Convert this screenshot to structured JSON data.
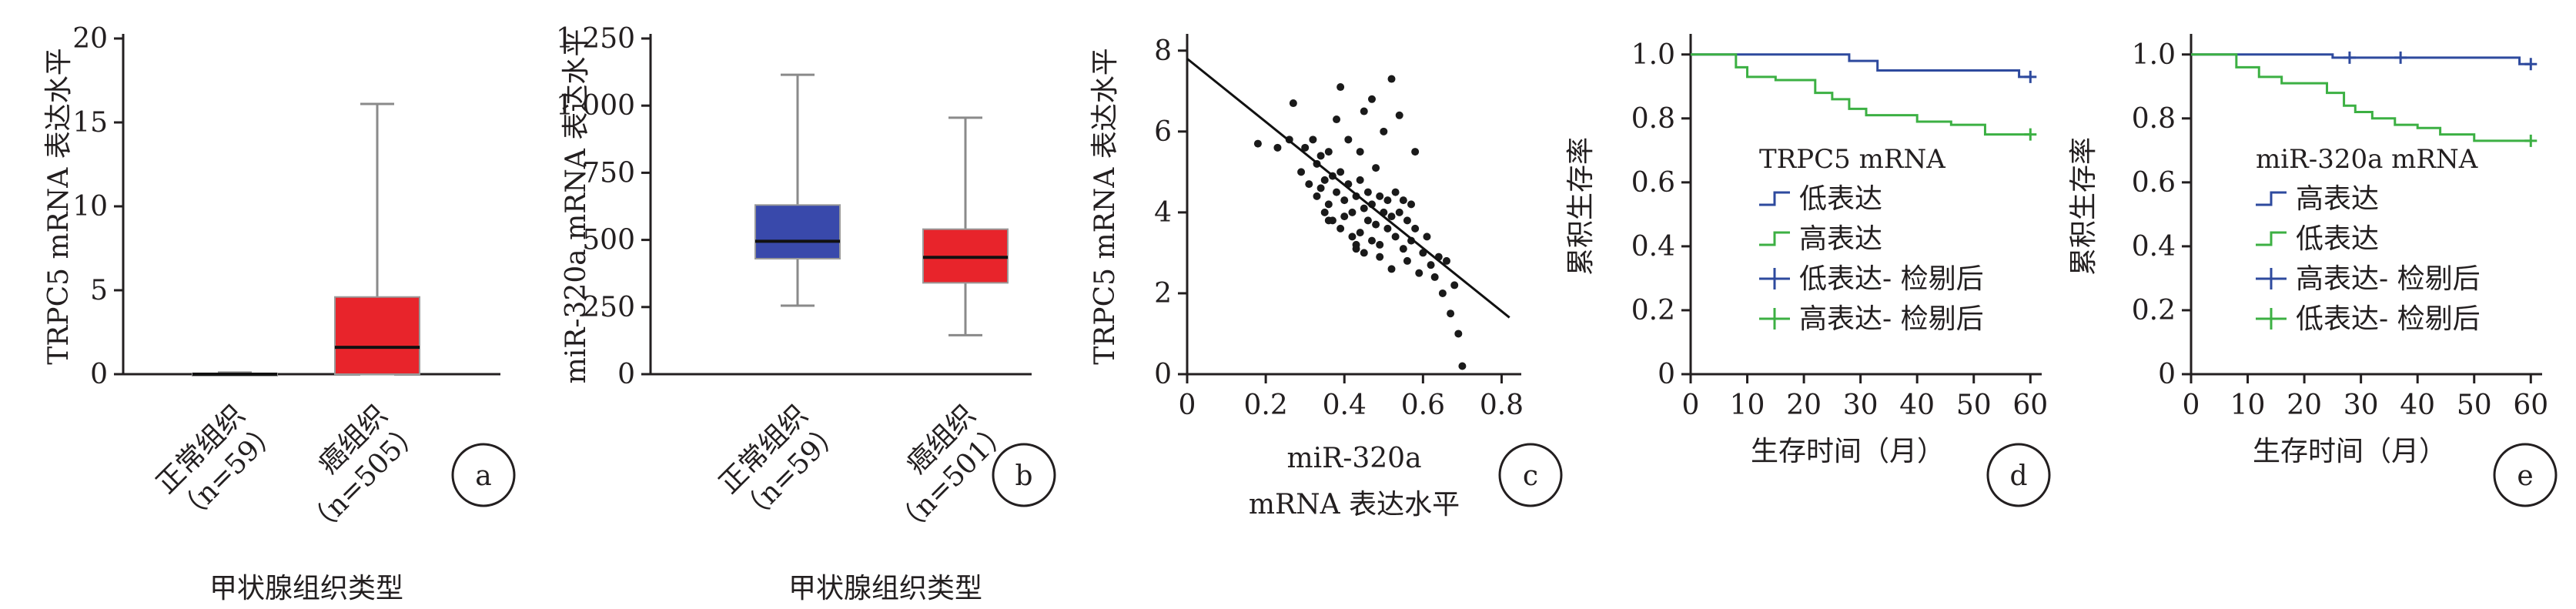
{
  "chart_data": [
    {
      "panel": "a",
      "type": "box",
      "ylabel": "TRPC5 mRNA 表达水平",
      "xlabel": "甲状腺组织类型",
      "ylim": [
        0,
        20
      ],
      "yticks": [
        "0",
        "5",
        "10",
        "15",
        "20"
      ],
      "categories": [
        {
          "name": "正常组织",
          "n": "（n=59）"
        },
        {
          "name": "癌组织",
          "n": "（n=505）"
        }
      ],
      "boxes": [
        {
          "min": 0,
          "q1": 0,
          "median": 0,
          "q3": 0.05,
          "max": 0.1,
          "color": "#1f3a93"
        },
        {
          "min": 0,
          "q1": 0,
          "median": 1.6,
          "q3": 4.6,
          "max": 16.1,
          "color": "#e8242b"
        }
      ]
    },
    {
      "panel": "b",
      "type": "box",
      "ylabel": "miR-320a mRNA 表达水平",
      "xlabel": "甲状腺组织类型",
      "ylim": [
        0,
        1250
      ],
      "yticks": [
        "0",
        "250",
        "500",
        "750",
        "1 000",
        "1 250"
      ],
      "categories": [
        {
          "name": "正常组织",
          "n": "（n=59）"
        },
        {
          "name": "癌组织",
          "n": "（n=501）"
        }
      ],
      "boxes": [
        {
          "min": 255,
          "q1": 430,
          "median": 495,
          "q3": 630,
          "max": 1115,
          "color": "#3949ab"
        },
        {
          "min": 145,
          "q1": 340,
          "median": 435,
          "q3": 540,
          "max": 955,
          "color": "#e8242b"
        }
      ]
    },
    {
      "panel": "c",
      "type": "scatter",
      "ylabel": "TRPC5 mRNA 表达水平",
      "xlabel_lines": [
        "miR-320a",
        "mRNA 表达水平"
      ],
      "xlim": [
        0,
        0.85
      ],
      "ylim": [
        0,
        8.3
      ],
      "xticks": [
        "0",
        "0.2",
        "0.4",
        "0.6",
        "0.8"
      ],
      "yticks": [
        "0",
        "2",
        "4",
        "6",
        "8"
      ],
      "fit": {
        "x": [
          0,
          0.82
        ],
        "y": [
          7.8,
          1.4
        ]
      },
      "points": [
        [
          0.18,
          5.7
        ],
        [
          0.23,
          5.6
        ],
        [
          0.26,
          5.8
        ],
        [
          0.27,
          6.7
        ],
        [
          0.29,
          5.0
        ],
        [
          0.3,
          5.6
        ],
        [
          0.31,
          4.7
        ],
        [
          0.32,
          5.8
        ],
        [
          0.33,
          5.2
        ],
        [
          0.33,
          4.4
        ],
        [
          0.34,
          4.6
        ],
        [
          0.34,
          5.4
        ],
        [
          0.35,
          4.0
        ],
        [
          0.35,
          4.8
        ],
        [
          0.36,
          4.2
        ],
        [
          0.36,
          5.5
        ],
        [
          0.37,
          3.8
        ],
        [
          0.37,
          4.9
        ],
        [
          0.38,
          6.3
        ],
        [
          0.38,
          4.5
        ],
        [
          0.39,
          7.1
        ],
        [
          0.39,
          3.6
        ],
        [
          0.39,
          5.0
        ],
        [
          0.4,
          4.3
        ],
        [
          0.4,
          3.9
        ],
        [
          0.41,
          4.7
        ],
        [
          0.41,
          5.8
        ],
        [
          0.42,
          3.4
        ],
        [
          0.42,
          4.0
        ],
        [
          0.43,
          3.1
        ],
        [
          0.43,
          4.4
        ],
        [
          0.43,
          3.2
        ],
        [
          0.44,
          4.8
        ],
        [
          0.44,
          3.5
        ],
        [
          0.45,
          6.5
        ],
        [
          0.45,
          4.1
        ],
        [
          0.45,
          3.0
        ],
        [
          0.46,
          4.5
        ],
        [
          0.46,
          3.8
        ],
        [
          0.47,
          6.8
        ],
        [
          0.47,
          3.3
        ],
        [
          0.47,
          4.2
        ],
        [
          0.48,
          5.1
        ],
        [
          0.48,
          3.7
        ],
        [
          0.49,
          4.4
        ],
        [
          0.49,
          2.9
        ],
        [
          0.5,
          4.0
        ],
        [
          0.5,
          6.0
        ],
        [
          0.51,
          3.6
        ],
        [
          0.51,
          4.3
        ],
        [
          0.52,
          7.3
        ],
        [
          0.52,
          3.9
        ],
        [
          0.52,
          2.6
        ],
        [
          0.53,
          4.5
        ],
        [
          0.53,
          3.4
        ],
        [
          0.54,
          6.4
        ],
        [
          0.54,
          4.0
        ],
        [
          0.55,
          4.3
        ],
        [
          0.55,
          3.1
        ],
        [
          0.56,
          3.8
        ],
        [
          0.56,
          2.8
        ],
        [
          0.57,
          4.2
        ],
        [
          0.57,
          3.3
        ],
        [
          0.58,
          3.6
        ],
        [
          0.58,
          5.5
        ],
        [
          0.59,
          2.5
        ],
        [
          0.6,
          3.0
        ],
        [
          0.61,
          3.4
        ],
        [
          0.62,
          2.7
        ],
        [
          0.63,
          2.4
        ],
        [
          0.64,
          2.9
        ],
        [
          0.65,
          2.0
        ],
        [
          0.66,
          2.8
        ],
        [
          0.67,
          1.5
        ],
        [
          0.68,
          2.2
        ],
        [
          0.69,
          1.0
        ],
        [
          0.7,
          0.2
        ],
        [
          0.44,
          5.5
        ],
        [
          0.36,
          3.8
        ],
        [
          0.49,
          3.2
        ]
      ]
    },
    {
      "panel": "d",
      "type": "line",
      "ylabel": "累积生存率",
      "xlabel": "生存时间（月）",
      "xlim": [
        0,
        62
      ],
      "ylim": [
        0,
        1.05
      ],
      "xticks": [
        "0",
        "10",
        "20",
        "30",
        "40",
        "50",
        "60"
      ],
      "yticks": [
        "0",
        "0.2",
        "0.4",
        "0.6",
        "0.8",
        "1.0"
      ],
      "legend_title": "TRPC5 mRNA",
      "legend": [
        "低表达",
        "高表达",
        "低表达- 检剔后",
        "高表达- 检剔后"
      ],
      "series": [
        {
          "name": "低表达",
          "color": "#2e4a9e",
          "steps": [
            [
              0,
              1.0
            ],
            [
              28,
              1.0
            ],
            [
              28,
              0.98
            ],
            [
              33,
              0.98
            ],
            [
              33,
              0.95
            ],
            [
              58,
              0.95
            ],
            [
              58,
              0.93
            ],
            [
              60,
              0.93
            ]
          ],
          "censor": [
            [
              60,
              0.93
            ]
          ]
        },
        {
          "name": "高表达",
          "color": "#3cb043",
          "steps": [
            [
              0,
              1.0
            ],
            [
              8,
              1.0
            ],
            [
              8,
              0.96
            ],
            [
              10,
              0.96
            ],
            [
              10,
              0.93
            ],
            [
              15,
              0.93
            ],
            [
              15,
              0.92
            ],
            [
              22,
              0.92
            ],
            [
              22,
              0.88
            ],
            [
              25,
              0.88
            ],
            [
              25,
              0.86
            ],
            [
              28,
              0.86
            ],
            [
              28,
              0.83
            ],
            [
              31,
              0.83
            ],
            [
              31,
              0.81
            ],
            [
              40,
              0.81
            ],
            [
              40,
              0.79
            ],
            [
              46,
              0.79
            ],
            [
              46,
              0.78
            ],
            [
              52,
              0.78
            ],
            [
              52,
              0.75
            ],
            [
              60,
              0.75
            ]
          ],
          "censor": [
            [
              60,
              0.75
            ]
          ]
        }
      ]
    },
    {
      "panel": "e",
      "type": "line",
      "ylabel": "累积生存率",
      "xlabel": "生存时间（月）",
      "xlim": [
        0,
        62
      ],
      "ylim": [
        0,
        1.05
      ],
      "xticks": [
        "0",
        "10",
        "20",
        "30",
        "40",
        "50",
        "60"
      ],
      "yticks": [
        "0",
        "0.2",
        "0.4",
        "0.6",
        "0.8",
        "1.0"
      ],
      "legend_title": "miR-320a mRNA",
      "legend": [
        "高表达",
        "低表达",
        "高表达- 检剔后",
        "低表达- 检剔后"
      ],
      "series": [
        {
          "name": "高表达",
          "color": "#2e4a9e",
          "steps": [
            [
              0,
              1.0
            ],
            [
              25,
              1.0
            ],
            [
              25,
              0.99
            ],
            [
              58,
              0.99
            ],
            [
              58,
              0.97
            ],
            [
              60,
              0.97
            ]
          ],
          "censor": [
            [
              28,
              0.99
            ],
            [
              37,
              0.99
            ],
            [
              60,
              0.97
            ]
          ]
        },
        {
          "name": "低表达",
          "color": "#3cb043",
          "steps": [
            [
              0,
              1.0
            ],
            [
              8,
              1.0
            ],
            [
              8,
              0.96
            ],
            [
              12,
              0.96
            ],
            [
              12,
              0.93
            ],
            [
              16,
              0.93
            ],
            [
              16,
              0.91
            ],
            [
              24,
              0.91
            ],
            [
              24,
              0.88
            ],
            [
              27,
              0.88
            ],
            [
              27,
              0.84
            ],
            [
              29,
              0.84
            ],
            [
              29,
              0.82
            ],
            [
              32,
              0.82
            ],
            [
              32,
              0.8
            ],
            [
              36,
              0.8
            ],
            [
              36,
              0.78
            ],
            [
              40,
              0.78
            ],
            [
              40,
              0.77
            ],
            [
              44,
              0.77
            ],
            [
              44,
              0.75
            ],
            [
              50,
              0.75
            ],
            [
              50,
              0.73
            ],
            [
              60,
              0.73
            ]
          ],
          "censor": [
            [
              60,
              0.73
            ]
          ]
        }
      ]
    }
  ]
}
